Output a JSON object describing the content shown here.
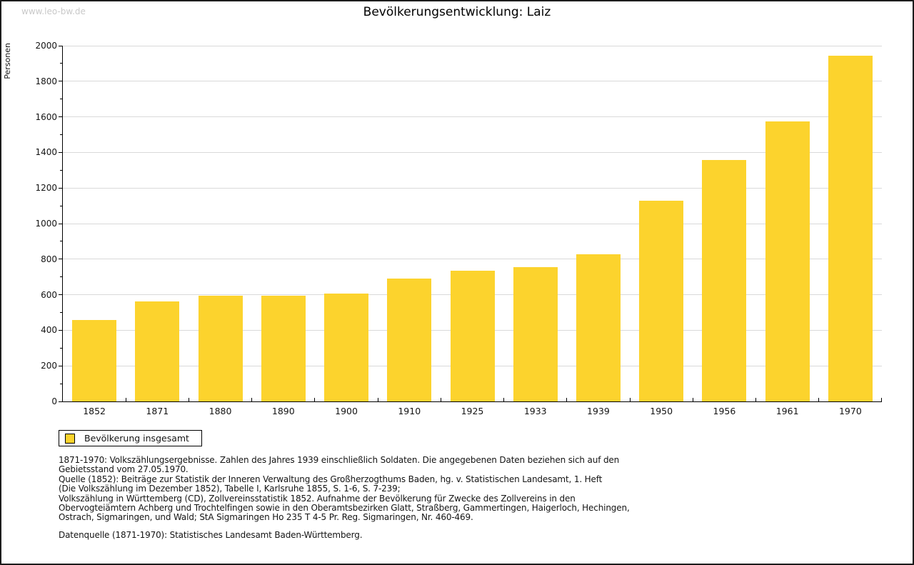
{
  "watermark": "www.leo-bw.de",
  "title": "Bevölkerungsentwicklung: Laiz",
  "ylabel": "Personen",
  "legend": {
    "label": "Bevölkerung insgesamt",
    "swatch_color": "#FCD32D"
  },
  "colors": {
    "bar": "#FCD32D",
    "grid": "#DADADA",
    "axis": "#000000",
    "watermark": "#C9C9C9"
  },
  "chart_data": {
    "type": "bar",
    "title": "Bevölkerungsentwicklung: Laiz",
    "xlabel": "",
    "ylabel": "Personen",
    "series_name": "Bevölkerung insgesamt",
    "categories": [
      "1852",
      "1871",
      "1880",
      "1890",
      "1900",
      "1910",
      "1925",
      "1933",
      "1939",
      "1950",
      "1956",
      "1961",
      "1970"
    ],
    "values": [
      456,
      563,
      593,
      593,
      607,
      692,
      737,
      755,
      828,
      1130,
      1356,
      1574,
      1944
    ],
    "ylim": [
      0,
      2000
    ],
    "ytick_step": 200,
    "ytick_minor_step": 100,
    "grid": true,
    "legend_position": "bottom-left",
    "bar_color": "#FCD32D"
  },
  "footnotes": {
    "lines": [
      "1871-1970: Volkszählungsergebnisse. Zahlen des Jahres 1939 einschließlich Soldaten. Die angegebenen Daten beziehen sich auf den",
      "Gebietsstand vom 27.05.1970.",
      "Quelle (1852): Beiträge zur Statistik der Inneren Verwaltung des Großherzogthums Baden, hg. v. Statistischen Landesamt, 1. Heft",
      "(Die Volkszählung im Dezember 1852), Tabelle I, Karlsruhe 1855, S. 1-6, S. 7-239;",
      "Volkszählung in Württemberg (CD), Zollvereinsstatistik 1852. Aufnahme der Bevölkerung für Zwecke des Zollvereins in den",
      "Obervogteiämtern Achberg und Trochtelfingen sowie in den Oberamtsbezirken Glatt, Straßberg, Gammertingen, Haigerloch, Hechingen,",
      "Ostrach, Sigmaringen, und Wald; StA Sigmaringen Ho 235 T 4-5 Pr. Reg. Sigmaringen, Nr. 460-469."
    ],
    "datenquelle": "Datenquelle (1871-1970): Statistisches Landesamt Baden-Württemberg."
  }
}
